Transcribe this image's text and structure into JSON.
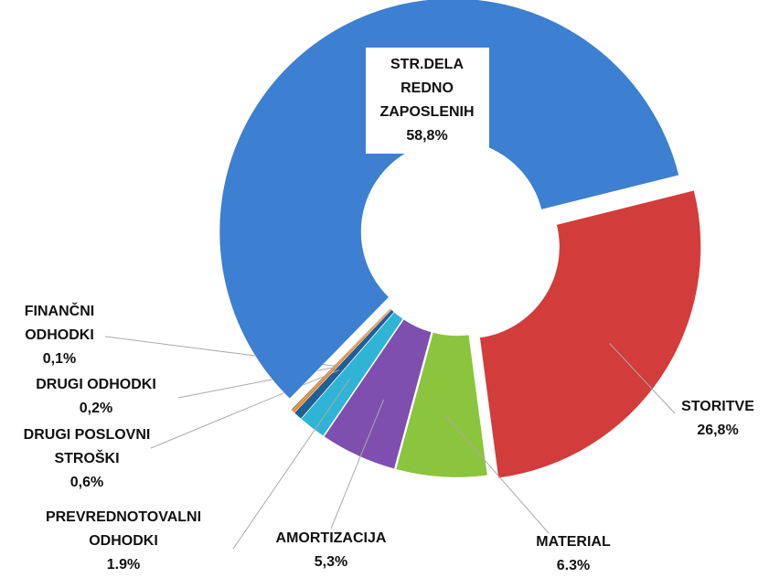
{
  "chart_data": {
    "type": "donut",
    "categories": [
      "STORITVE",
      "MATERIAL",
      "AMORTIZACIJA",
      "PREVREDNOTOVALNI ODHODKI",
      "DRUGI POSLOVNI STROŠKI",
      "DRUGI ODHODKI",
      "FINANČNI ODHODKI",
      "STR.DELA REDNO ZAPOSLENIH"
    ],
    "values": [
      26.8,
      6.3,
      5.3,
      1.9,
      0.6,
      0.2,
      0.1,
      58.8
    ],
    "value_labels": [
      "26,8%",
      "6.3%",
      "5,3%",
      "1.9%",
      "0,6%",
      "0,2%",
      "0,1%",
      "58,8%"
    ],
    "colors": [
      "#d23c3a",
      "#8bc43d",
      "#7e4fae",
      "#2fb4d6",
      "#1e5f96",
      "#f0821e",
      "#8a6a3a",
      "#3d7fd1"
    ]
  }
}
